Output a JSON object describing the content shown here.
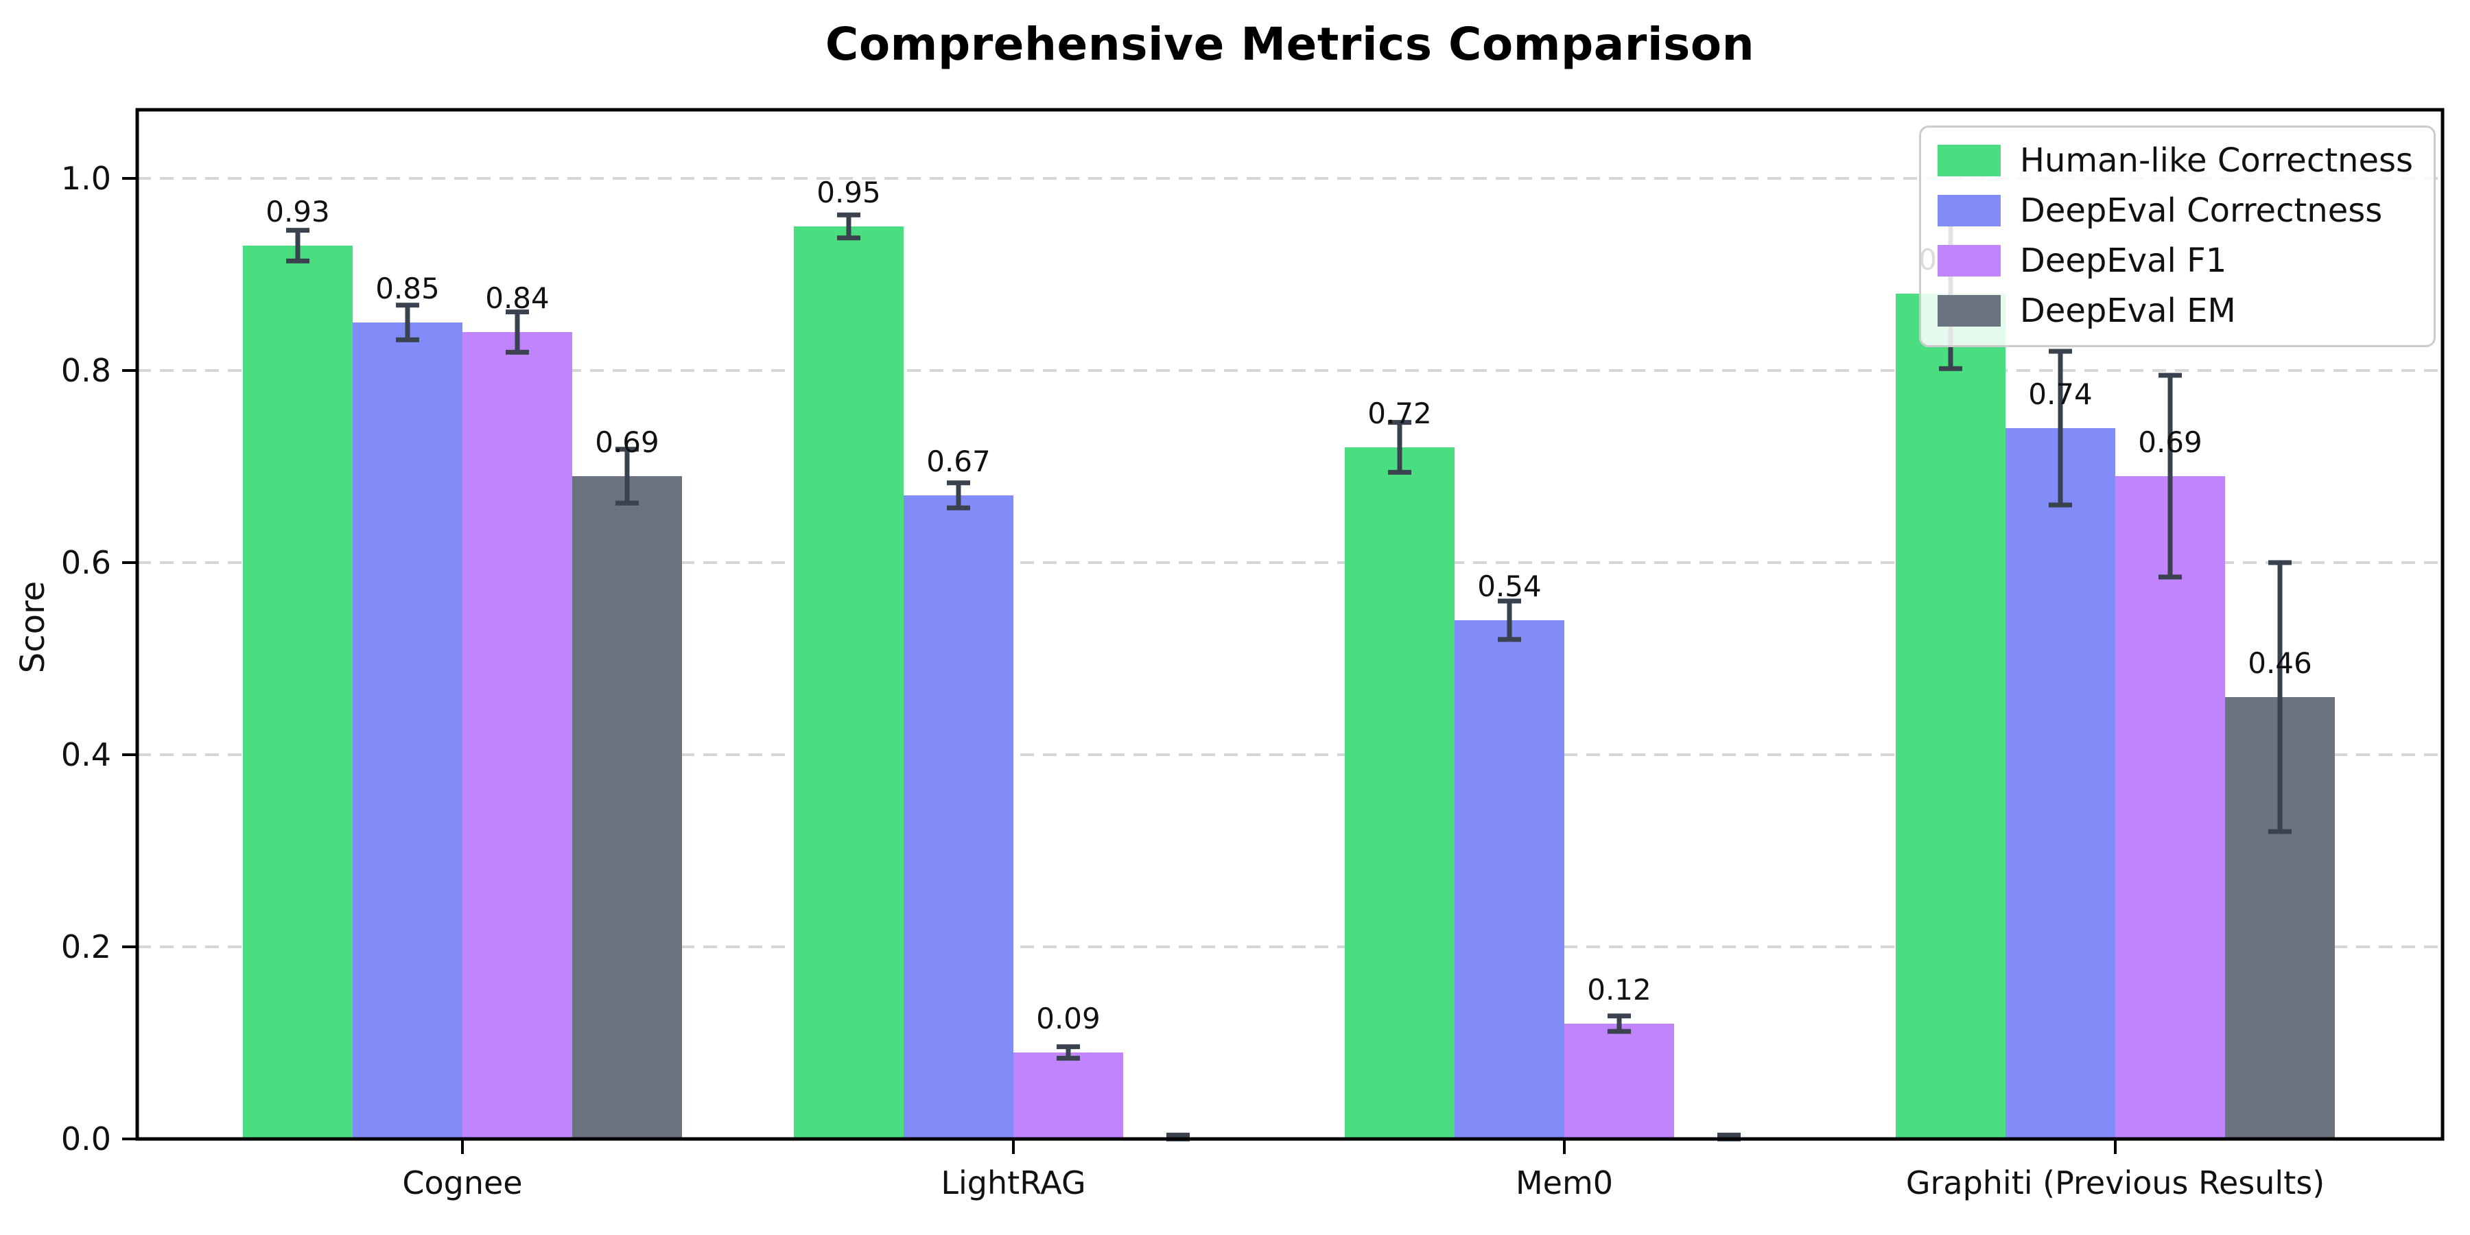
{
  "chart_data": {
    "type": "bar",
    "title": "Comprehensive Metrics Comparison",
    "ylabel": "Score",
    "categories": [
      "Cognee",
      "LightRAG",
      "Mem0",
      "Graphiti (Previous Results)"
    ],
    "series": [
      {
        "name": "Human-like Correctness",
        "color": "#4ade80",
        "values": [
          0.93,
          0.95,
          0.72,
          0.88
        ],
        "errors": [
          0.016,
          0.012,
          0.026,
          0.078
        ],
        "labels": [
          "0.93",
          "0.95",
          "0.72",
          "0.88"
        ]
      },
      {
        "name": "DeepEval Correctness",
        "color": "#818cf8",
        "values": [
          0.85,
          0.67,
          0.54,
          0.74
        ],
        "errors": [
          0.018,
          0.013,
          0.02,
          0.08
        ],
        "labels": [
          "0.85",
          "0.67",
          "0.54",
          "0.74"
        ]
      },
      {
        "name": "DeepEval F1",
        "color": "#c084fc",
        "values": [
          0.84,
          0.09,
          0.12,
          0.69
        ],
        "errors": [
          0.021,
          0.006,
          0.008,
          0.105
        ],
        "labels": [
          "0.84",
          "0.09",
          "0.12",
          "0.69"
        ]
      },
      {
        "name": "DeepEval EM",
        "color": "#6b7280",
        "values": [
          0.69,
          0.0,
          0.0,
          0.46
        ],
        "errors": [
          0.028,
          0.004,
          0.004,
          0.14
        ],
        "labels": [
          "0.69",
          "",
          "",
          "0.46"
        ]
      }
    ],
    "yticks": [
      "0.0",
      "0.2",
      "0.4",
      "0.6",
      "0.8",
      "1.0"
    ],
    "ylim": [
      0,
      1.07
    ],
    "grid": "dashed-horizontal",
    "legend_position": "upper-right",
    "error_bar_color": "#3a4250"
  }
}
